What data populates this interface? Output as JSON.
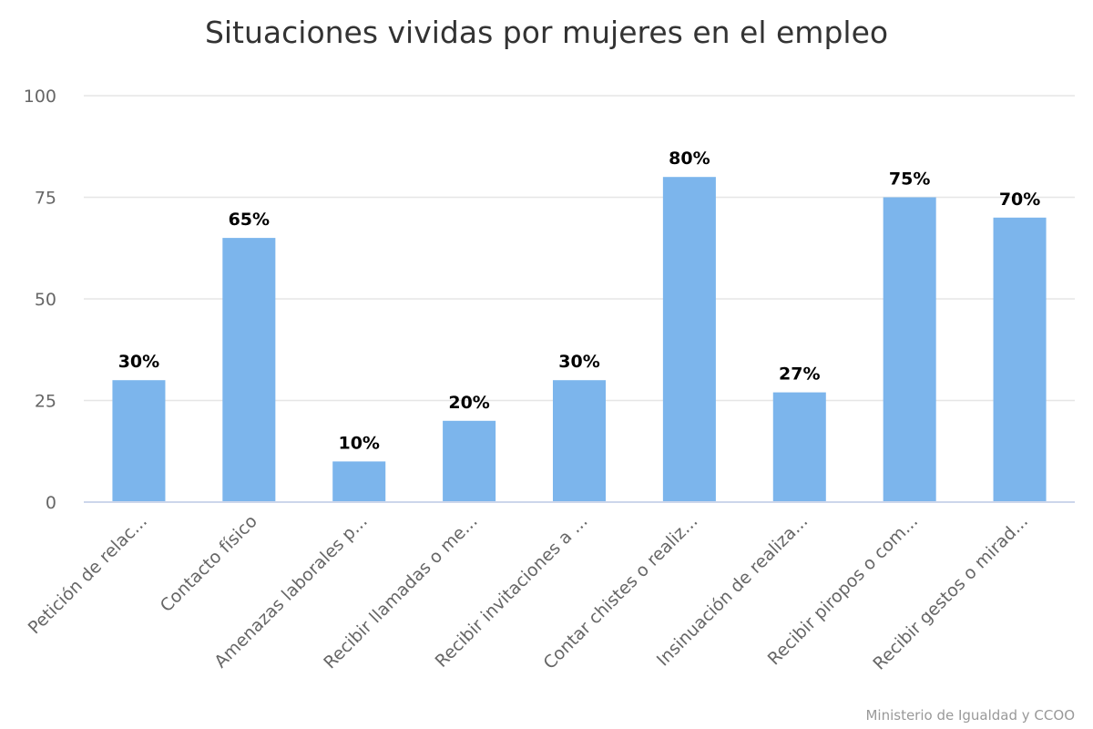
{
  "chart_data": {
    "type": "bar",
    "title": "Situaciones vividas por mujeres en el empleo",
    "xlabel": "",
    "ylabel": "",
    "ylim": [
      0,
      100
    ],
    "yticks": [
      0,
      25,
      50,
      75,
      100
    ],
    "grid": true,
    "legend": "none",
    "bar_color": "#7cb5ec",
    "categories": [
      "Petición de relac...",
      "Contacto físico",
      "Amenazas laborales p...",
      "Recibir llamadas o me...",
      "Recibir invitaciones a ...",
      "Contar chistes o realiz...",
      "Insinuación de realiza...",
      "Recibir piropos o com...",
      "Recibir gestos o mirad..."
    ],
    "values": [
      30,
      65,
      10,
      20,
      30,
      80,
      27,
      75,
      70
    ],
    "data_labels": [
      "30%",
      "65%",
      "10%",
      "20%",
      "30%",
      "80%",
      "27%",
      "75%",
      "70%"
    ],
    "credits": "Ministerio de Igualdad y CCOO"
  }
}
